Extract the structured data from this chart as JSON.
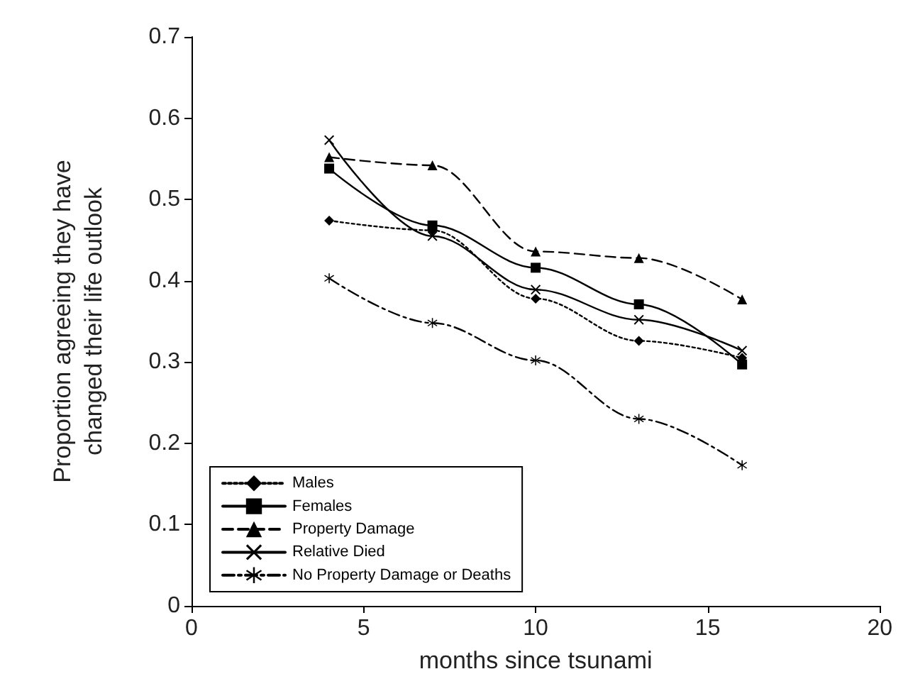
{
  "chart_data": {
    "type": "line",
    "xlabel": "months since tsunami",
    "ylabel": "Proportion agreeing they have\nchanged their life outlook",
    "x": [
      4,
      7,
      10,
      13,
      16
    ],
    "series": [
      {
        "name": "Males",
        "color": "#000000",
        "marker": "diamond",
        "line_style": "dotted",
        "values": [
          0.474,
          0.462,
          0.378,
          0.326,
          0.305
        ]
      },
      {
        "name": "Females",
        "color": "#000000",
        "marker": "square",
        "line_style": "solid",
        "values": [
          0.538,
          0.468,
          0.416,
          0.371,
          0.297
        ]
      },
      {
        "name": "Property Damage",
        "color": "#000000",
        "marker": "triangle",
        "line_style": "dashed",
        "values": [
          0.552,
          0.542,
          0.436,
          0.428,
          0.377
        ]
      },
      {
        "name": "Relative Died",
        "color": "#000000",
        "marker": "cross",
        "line_style": "solid",
        "values": [
          0.573,
          0.455,
          0.389,
          0.352,
          0.314
        ]
      },
      {
        "name": "No Property Damage or Deaths",
        "color": "#000000",
        "marker": "star",
        "line_style": "dashdot",
        "values": [
          0.403,
          0.348,
          0.302,
          0.23,
          0.173
        ]
      }
    ],
    "xlim": [
      0,
      20
    ],
    "xticks": [
      0,
      5,
      10,
      15,
      20
    ],
    "ylim": [
      0,
      0.7
    ],
    "yticks": [
      0,
      0.1,
      0.2,
      0.3,
      0.4,
      0.5,
      0.6,
      0.7
    ],
    "grid": false,
    "legend": "bottom left"
  }
}
